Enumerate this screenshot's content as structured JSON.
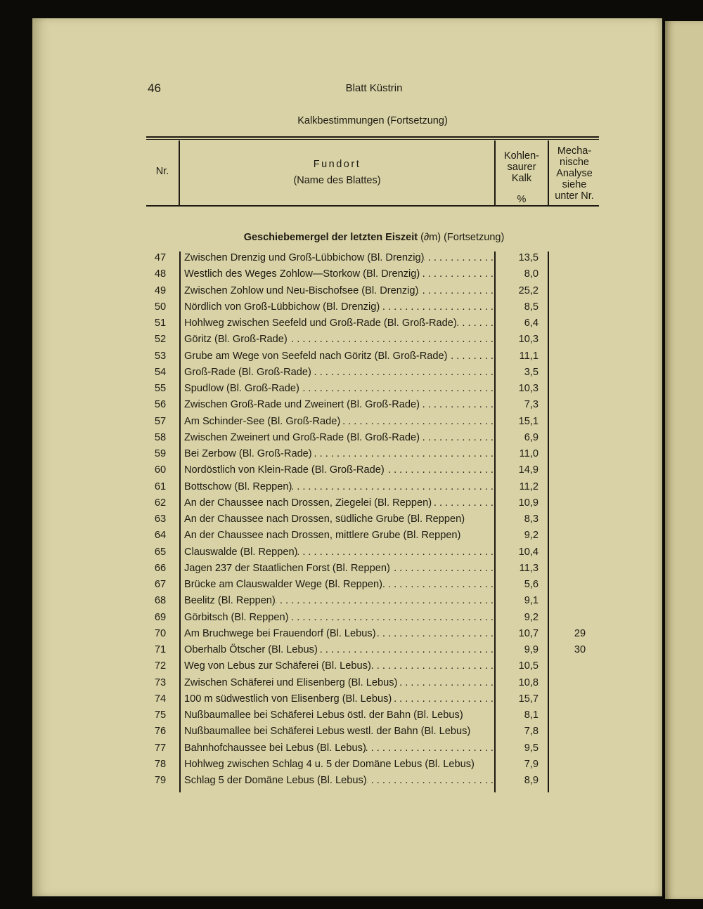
{
  "page_number": "46",
  "running_head": "Blatt Küstrin",
  "table_title": "Kalkbestimmungen (Fortsetzung)",
  "columns": {
    "nr": "Nr.",
    "fundort": "Fundort",
    "fundort_sub": "(Name des Blattes)",
    "kalk_lines": [
      "Kohlen-",
      "saurer",
      "Kalk"
    ],
    "kalk_unit": "%",
    "mech_lines": [
      "Mecha-",
      "nische",
      "Analyse",
      "siehe",
      "unter Nr."
    ]
  },
  "section": {
    "bold": "Geschiebemergel der letzten Eiszeit",
    "rest": "(∂m) (Fortsetzung)"
  },
  "rows": [
    {
      "nr": "47",
      "fundort": "Zwischen Drenzig und Groß-Lübbichow (Bl. Drenzig)",
      "kalk": "13,5",
      "mech": "",
      "dots": true
    },
    {
      "nr": "48",
      "fundort": "Westlich des Weges Zohlow—Storkow (Bl. Drenzig)",
      "kalk": "8,0",
      "mech": "",
      "dots": true
    },
    {
      "nr": "49",
      "fundort": "Zwischen Zohlow und Neu-Bischofsee (Bl. Drenzig)",
      "kalk": "25,2",
      "mech": "",
      "dots": true
    },
    {
      "nr": "50",
      "fundort": "Nördlich von Groß-Lübbichow (Bl. Drenzig)",
      "kalk": "8,5",
      "mech": "",
      "dots": true
    },
    {
      "nr": "51",
      "fundort": "Hohlweg zwischen Seefeld und Groß-Rade (Bl. Groß-Rade)",
      "kalk": "6,4",
      "mech": "",
      "dots": true
    },
    {
      "nr": "52",
      "fundort": "Göritz (Bl. Groß-Rade)",
      "kalk": "10,3",
      "mech": "",
      "dots": true
    },
    {
      "nr": "53",
      "fundort": "Grube am Wege von Seefeld nach Göritz (Bl. Groß-Rade)",
      "kalk": "11,1",
      "mech": "",
      "dots": true
    },
    {
      "nr": "54",
      "fundort": "Groß-Rade (Bl. Groß-Rade)",
      "kalk": "3,5",
      "mech": "",
      "dots": true
    },
    {
      "nr": "55",
      "fundort": "Spudlow (Bl. Groß-Rade)",
      "kalk": "10,3",
      "mech": "",
      "dots": true
    },
    {
      "nr": "56",
      "fundort": "Zwischen Groß-Rade und Zweinert (Bl. Groß-Rade)",
      "kalk": "7,3",
      "mech": "",
      "dots": true
    },
    {
      "nr": "57",
      "fundort": "Am Schinder-See (Bl. Groß-Rade)",
      "kalk": "15,1",
      "mech": "",
      "dots": true
    },
    {
      "nr": "58",
      "fundort": "Zwischen Zweinert und Groß-Rade (Bl. Groß-Rade)",
      "kalk": "6,9",
      "mech": "",
      "dots": true
    },
    {
      "nr": "59",
      "fundort": "Bei Zerbow (Bl. Groß-Rade)",
      "kalk": "11,0",
      "mech": "",
      "dots": true
    },
    {
      "nr": "60",
      "fundort": "Nordöstlich von Klein-Rade (Bl. Groß-Rade)",
      "kalk": "14,9",
      "mech": "",
      "dots": true
    },
    {
      "nr": "61",
      "fundort": "Bottschow (Bl. Reppen)",
      "kalk": "11,2",
      "mech": "",
      "dots": true
    },
    {
      "nr": "62",
      "fundort": "An der Chaussee nach Drossen, Ziegelei (Bl. Reppen)",
      "kalk": "10,9",
      "mech": "",
      "dots": true
    },
    {
      "nr": "63",
      "fundort": "An der Chaussee nach Drossen, südliche Grube (Bl. Reppen)",
      "kalk": "8,3",
      "mech": "",
      "dots": false
    },
    {
      "nr": "64",
      "fundort": "An der Chaussee nach Drossen, mittlere Grube (Bl. Reppen)",
      "kalk": "9,2",
      "mech": "",
      "dots": false
    },
    {
      "nr": "65",
      "fundort": "Clauswalde (Bl. Reppen)",
      "kalk": "10,4",
      "mech": "",
      "dots": true
    },
    {
      "nr": "66",
      "fundort": "Jagen 237 der Staatlichen Forst (Bl. Reppen)",
      "kalk": "11,3",
      "mech": "",
      "dots": true
    },
    {
      "nr": "67",
      "fundort": "Brücke am Clauswalder Wege (Bl. Reppen)",
      "kalk": "5,6",
      "mech": "",
      "dots": true
    },
    {
      "nr": "68",
      "fundort": "Beelitz (Bl. Reppen)",
      "kalk": "9,1",
      "mech": "",
      "dots": true
    },
    {
      "nr": "69",
      "fundort": "Görbitsch (Bl. Reppen)",
      "kalk": "9,2",
      "mech": "",
      "dots": true
    },
    {
      "nr": "70",
      "fundort": "Am Bruchwege bei Frauendorf (Bl. Lebus)",
      "kalk": "10,7",
      "mech": "29",
      "dots": true
    },
    {
      "nr": "71",
      "fundort": "Oberhalb Ötscher (Bl. Lebus)",
      "kalk": "9,9",
      "mech": "30",
      "dots": true
    },
    {
      "nr": "72",
      "fundort": "Weg von Lebus zur Schäferei (Bl. Lebus)",
      "kalk": "10,5",
      "mech": "",
      "dots": true
    },
    {
      "nr": "73",
      "fundort": "Zwischen Schäferei und Elisenberg (Bl. Lebus)",
      "kalk": "10,8",
      "mech": "",
      "dots": true
    },
    {
      "nr": "74",
      "fundort": "100 m südwestlich von Elisenberg (Bl. Lebus)",
      "kalk": "15,7",
      "mech": "",
      "dots": true
    },
    {
      "nr": "75",
      "fundort": "Nußbaumallee bei Schäferei Lebus östl. der Bahn (Bl. Lebus)",
      "kalk": "8,1",
      "mech": "",
      "dots": false
    },
    {
      "nr": "76",
      "fundort": "Nußbaumallee bei Schäferei Lebus westl. der Bahn (Bl. Lebus)",
      "kalk": "7,8",
      "mech": "",
      "dots": false
    },
    {
      "nr": "77",
      "fundort": "Bahnhofchaussee bei Lebus (Bl. Lebus)",
      "kalk": "9,5",
      "mech": "",
      "dots": true
    },
    {
      "nr": "78",
      "fundort": "Hohlweg zwischen Schlag 4 u. 5 der Domäne Lebus (Bl. Lebus)",
      "kalk": "7,9",
      "mech": "",
      "dots": false
    },
    {
      "nr": "79",
      "fundort": "Schlag 5 der Domäne Lebus (Bl. Lebus)",
      "kalk": "8,9",
      "mech": "",
      "dots": true
    }
  ]
}
